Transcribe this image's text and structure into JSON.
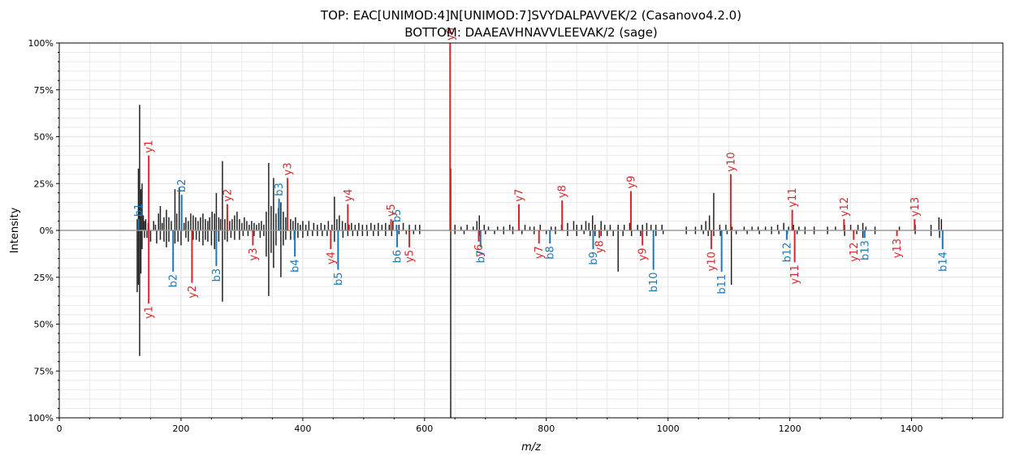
{
  "chart_data": {
    "type": "mirror-spectrum",
    "title_top": "TOP: EAC[UNIMOD:4]N[UNIMOD:7]SVYDALPAVVEK/2    (Casanovo4.2.0)",
    "title_bottom": "BOTTOM: DAAEAVHNAVVLEEVAK/2    (sage)",
    "xlabel": "m/z",
    "ylabel": "Intensity",
    "xlim": [
      0,
      1550
    ],
    "ylim": [
      -100,
      100
    ],
    "xticks": [
      "0",
      "200",
      "400",
      "600",
      "800",
      "1000",
      "1200",
      "1400"
    ],
    "yticks": [
      "100%",
      "75%",
      "50%",
      "25%",
      "0%",
      "25%",
      "50%",
      "75%",
      "100%"
    ],
    "grid": true,
    "colors": {
      "y_ion": "#d62728",
      "b_ion": "#1f77b4",
      "unmatched": "#212121",
      "baseline": "#999999"
    },
    "top_unmatched_peaks": [
      [
        128,
        6
      ],
      [
        130,
        33
      ],
      [
        131,
        14
      ],
      [
        132,
        67
      ],
      [
        134,
        22
      ],
      [
        136,
        25
      ],
      [
        138,
        8
      ],
      [
        140,
        5
      ],
      [
        142,
        6
      ],
      [
        146,
        4
      ],
      [
        155,
        5
      ],
      [
        158,
        3
      ],
      [
        163,
        9
      ],
      [
        166,
        13
      ],
      [
        169,
        4
      ],
      [
        172,
        7
      ],
      [
        176,
        11
      ],
      [
        180,
        7
      ],
      [
        184,
        5
      ],
      [
        190,
        22
      ],
      [
        193,
        9
      ],
      [
        197,
        23
      ],
      [
        201,
        6
      ],
      [
        205,
        4
      ],
      [
        208,
        7
      ],
      [
        212,
        5
      ],
      [
        216,
        9
      ],
      [
        220,
        8
      ],
      [
        224,
        7
      ],
      [
        228,
        5
      ],
      [
        232,
        7
      ],
      [
        236,
        9
      ],
      [
        240,
        6
      ],
      [
        244,
        5
      ],
      [
        247,
        7
      ],
      [
        251,
        10
      ],
      [
        255,
        9
      ],
      [
        258,
        20
      ],
      [
        262,
        7
      ],
      [
        265,
        6
      ],
      [
        268,
        37
      ],
      [
        272,
        6
      ],
      [
        276,
        9
      ],
      [
        280,
        5
      ],
      [
        284,
        6
      ],
      [
        288,
        8
      ],
      [
        292,
        10
      ],
      [
        296,
        6
      ],
      [
        300,
        4
      ],
      [
        304,
        7
      ],
      [
        308,
        5
      ],
      [
        312,
        3
      ],
      [
        316,
        5
      ],
      [
        320,
        4
      ],
      [
        324,
        3
      ],
      [
        328,
        4
      ],
      [
        332,
        5
      ],
      [
        336,
        3
      ],
      [
        340,
        10
      ],
      [
        344,
        36
      ],
      [
        348,
        13
      ],
      [
        352,
        28
      ],
      [
        356,
        9
      ],
      [
        360,
        12
      ],
      [
        364,
        15
      ],
      [
        368,
        10
      ],
      [
        372,
        7
      ],
      [
        380,
        6
      ],
      [
        384,
        5
      ],
      [
        388,
        7
      ],
      [
        392,
        4
      ],
      [
        396,
        3
      ],
      [
        400,
        5
      ],
      [
        405,
        3
      ],
      [
        410,
        5
      ],
      [
        418,
        4
      ],
      [
        424,
        3
      ],
      [
        430,
        4
      ],
      [
        436,
        3
      ],
      [
        442,
        5
      ],
      [
        448,
        3
      ],
      [
        452,
        18
      ],
      [
        456,
        6
      ],
      [
        460,
        8
      ],
      [
        465,
        5
      ],
      [
        470,
        4
      ],
      [
        476,
        3
      ],
      [
        480,
        4
      ],
      [
        486,
        3
      ],
      [
        492,
        4
      ],
      [
        498,
        3
      ],
      [
        505,
        3
      ],
      [
        512,
        4
      ],
      [
        518,
        3
      ],
      [
        524,
        4
      ],
      [
        530,
        3
      ],
      [
        536,
        4
      ],
      [
        542,
        3
      ],
      [
        548,
        5
      ],
      [
        558,
        3
      ],
      [
        565,
        4
      ],
      [
        575,
        3
      ],
      [
        585,
        3
      ],
      [
        592,
        3
      ],
      [
        643,
        33
      ],
      [
        650,
        3
      ],
      [
        660,
        2
      ],
      [
        670,
        3
      ],
      [
        680,
        2
      ],
      [
        686,
        5
      ],
      [
        690,
        8
      ],
      [
        698,
        3
      ],
      [
        705,
        2
      ],
      [
        720,
        2
      ],
      [
        730,
        2
      ],
      [
        740,
        3
      ],
      [
        745,
        2
      ],
      [
        765,
        3
      ],
      [
        773,
        2
      ],
      [
        780,
        2
      ],
      [
        790,
        3
      ],
      [
        808,
        2
      ],
      [
        815,
        2
      ],
      [
        825,
        3
      ],
      [
        835,
        4
      ],
      [
        845,
        5
      ],
      [
        850,
        3
      ],
      [
        858,
        3
      ],
      [
        865,
        5
      ],
      [
        870,
        4
      ],
      [
        876,
        8
      ],
      [
        880,
        3
      ],
      [
        890,
        5
      ],
      [
        896,
        3
      ],
      [
        905,
        3
      ],
      [
        918,
        3
      ],
      [
        928,
        3
      ],
      [
        937,
        4
      ],
      [
        950,
        3
      ],
      [
        958,
        3
      ],
      [
        965,
        4
      ],
      [
        972,
        3
      ],
      [
        980,
        3
      ],
      [
        990,
        3
      ],
      [
        1030,
        2
      ],
      [
        1045,
        2
      ],
      [
        1055,
        3
      ],
      [
        1062,
        5
      ],
      [
        1068,
        8
      ],
      [
        1075,
        20
      ],
      [
        1085,
        3
      ],
      [
        1095,
        3
      ],
      [
        1105,
        2
      ],
      [
        1125,
        2
      ],
      [
        1138,
        2
      ],
      [
        1148,
        2
      ],
      [
        1160,
        2
      ],
      [
        1170,
        2
      ],
      [
        1180,
        3
      ],
      [
        1190,
        4
      ],
      [
        1198,
        2
      ],
      [
        1206,
        3
      ],
      [
        1215,
        2
      ],
      [
        1225,
        2
      ],
      [
        1240,
        2
      ],
      [
        1262,
        2
      ],
      [
        1275,
        2
      ],
      [
        1290,
        3
      ],
      [
        1300,
        3
      ],
      [
        1312,
        3
      ],
      [
        1320,
        4
      ],
      [
        1325,
        2
      ],
      [
        1340,
        2
      ],
      [
        1380,
        2
      ],
      [
        1406,
        3
      ],
      [
        1432,
        3
      ],
      [
        1445,
        7
      ],
      [
        1449,
        6
      ]
    ],
    "bottom_unmatched_peaks": [
      [
        128,
        33
      ],
      [
        130,
        29
      ],
      [
        132,
        67
      ],
      [
        134,
        23
      ],
      [
        136,
        10
      ],
      [
        140,
        4
      ],
      [
        144,
        4
      ],
      [
        150,
        6
      ],
      [
        160,
        7
      ],
      [
        166,
        5
      ],
      [
        172,
        6
      ],
      [
        176,
        9
      ],
      [
        180,
        6
      ],
      [
        190,
        7
      ],
      [
        195,
        6
      ],
      [
        200,
        8
      ],
      [
        208,
        4
      ],
      [
        212,
        6
      ],
      [
        220,
        5
      ],
      [
        225,
        5
      ],
      [
        230,
        6
      ],
      [
        236,
        8
      ],
      [
        240,
        5
      ],
      [
        244,
        6
      ],
      [
        250,
        8
      ],
      [
        255,
        10
      ],
      [
        262,
        6
      ],
      [
        268,
        38
      ],
      [
        272,
        5
      ],
      [
        276,
        6
      ],
      [
        282,
        4
      ],
      [
        288,
        5
      ],
      [
        296,
        5
      ],
      [
        302,
        3
      ],
      [
        310,
        3
      ],
      [
        320,
        3
      ],
      [
        330,
        4
      ],
      [
        336,
        3
      ],
      [
        340,
        14
      ],
      [
        344,
        35
      ],
      [
        348,
        12
      ],
      [
        352,
        20
      ],
      [
        356,
        8
      ],
      [
        364,
        25
      ],
      [
        368,
        8
      ],
      [
        372,
        5
      ],
      [
        380,
        5
      ],
      [
        386,
        5
      ],
      [
        392,
        4
      ],
      [
        400,
        4
      ],
      [
        408,
        3
      ],
      [
        416,
        3
      ],
      [
        424,
        3
      ],
      [
        432,
        3
      ],
      [
        440,
        3
      ],
      [
        452,
        6
      ],
      [
        458,
        4
      ],
      [
        466,
        4
      ],
      [
        474,
        3
      ],
      [
        482,
        3
      ],
      [
        490,
        3
      ],
      [
        498,
        3
      ],
      [
        506,
        3
      ],
      [
        516,
        3
      ],
      [
        524,
        3
      ],
      [
        536,
        3
      ],
      [
        546,
        3
      ],
      [
        558,
        2
      ],
      [
        570,
        2
      ],
      [
        582,
        2
      ],
      [
        592,
        2
      ],
      [
        643,
        100
      ],
      [
        650,
        2
      ],
      [
        665,
        2
      ],
      [
        690,
        3
      ],
      [
        700,
        2
      ],
      [
        715,
        2
      ],
      [
        730,
        2
      ],
      [
        745,
        2
      ],
      [
        760,
        2
      ],
      [
        780,
        2
      ],
      [
        800,
        2
      ],
      [
        815,
        2
      ],
      [
        835,
        3
      ],
      [
        850,
        3
      ],
      [
        862,
        2
      ],
      [
        872,
        3
      ],
      [
        880,
        3
      ],
      [
        890,
        3
      ],
      [
        900,
        3
      ],
      [
        910,
        3
      ],
      [
        918,
        22
      ],
      [
        926,
        3
      ],
      [
        940,
        3
      ],
      [
        955,
        3
      ],
      [
        965,
        3
      ],
      [
        980,
        3
      ],
      [
        992,
        2
      ],
      [
        1030,
        2
      ],
      [
        1045,
        2
      ],
      [
        1058,
        2
      ],
      [
        1066,
        3
      ],
      [
        1075,
        3
      ],
      [
        1086,
        3
      ],
      [
        1097,
        2
      ],
      [
        1104,
        29
      ],
      [
        1112,
        2
      ],
      [
        1130,
        2
      ],
      [
        1150,
        2
      ],
      [
        1170,
        2
      ],
      [
        1182,
        2
      ],
      [
        1196,
        2
      ],
      [
        1212,
        2
      ],
      [
        1225,
        2
      ],
      [
        1240,
        2
      ],
      [
        1262,
        2
      ],
      [
        1290,
        3
      ],
      [
        1310,
        2
      ],
      [
        1320,
        4
      ],
      [
        1340,
        2
      ],
      [
        1406,
        2
      ],
      [
        1432,
        3
      ],
      [
        1446,
        4
      ]
    ],
    "top_matched": [
      {
        "label": "b1",
        "mz": 130,
        "intensity": 6,
        "type": "b"
      },
      {
        "label": "y1",
        "mz": 147,
        "intensity": 40,
        "type": "y"
      },
      {
        "label": "b2",
        "mz": 201,
        "intensity": 19,
        "type": "b"
      },
      {
        "label": "y2",
        "mz": 276,
        "intensity": 14,
        "type": "y"
      },
      {
        "label": "b3",
        "mz": 361,
        "intensity": 17,
        "type": "b"
      },
      {
        "label": "y3",
        "mz": 375,
        "intensity": 28,
        "type": "y"
      },
      {
        "label": "y4",
        "mz": 474,
        "intensity": 14,
        "type": "y"
      },
      {
        "label": "y5",
        "mz": 545,
        "intensity": 6,
        "type": "y"
      },
      {
        "label": "b5",
        "mz": 554,
        "intensity": 3,
        "type": "b"
      },
      {
        "label": "y6",
        "mz": 642,
        "intensity": 100,
        "type": "y"
      },
      {
        "label": "y7",
        "mz": 755,
        "intensity": 14,
        "type": "y"
      },
      {
        "label": "y8",
        "mz": 826,
        "intensity": 16,
        "type": "y"
      },
      {
        "label": "y9",
        "mz": 939,
        "intensity": 21,
        "type": "y"
      },
      {
        "label": "y10",
        "mz": 1103,
        "intensity": 30,
        "type": "y"
      },
      {
        "label": "y11",
        "mz": 1204,
        "intensity": 11,
        "type": "y"
      },
      {
        "label": "y12",
        "mz": 1289,
        "intensity": 6,
        "type": "y"
      },
      {
        "label": "y13",
        "mz": 1405,
        "intensity": 6,
        "type": "y"
      }
    ],
    "bottom_matched": [
      {
        "label": "y1",
        "mz": 147,
        "intensity": 39,
        "type": "y"
      },
      {
        "label": "b2",
        "mz": 187,
        "intensity": 22,
        "type": "b"
      },
      {
        "label": "y2",
        "mz": 218,
        "intensity": 28,
        "type": "y"
      },
      {
        "label": "b3",
        "mz": 258,
        "intensity": 19,
        "type": "b"
      },
      {
        "label": "y3",
        "mz": 318,
        "intensity": 8,
        "type": "y"
      },
      {
        "label": "b4",
        "mz": 387,
        "intensity": 14,
        "type": "b"
      },
      {
        "label": "y4",
        "mz": 446,
        "intensity": 10,
        "type": "y"
      },
      {
        "label": "b5",
        "mz": 458,
        "intensity": 21,
        "type": "b"
      },
      {
        "label": "b6",
        "mz": 555,
        "intensity": 9,
        "type": "b"
      },
      {
        "label": "y5",
        "mz": 575,
        "intensity": 9,
        "type": "y"
      },
      {
        "label": "y6",
        "mz": 689,
        "intensity": 6,
        "type": "y"
      },
      {
        "label": "b7",
        "mz": 692,
        "intensity": 9,
        "type": "b"
      },
      {
        "label": "y7",
        "mz": 788,
        "intensity": 7,
        "type": "y"
      },
      {
        "label": "b8",
        "mz": 806,
        "intensity": 7,
        "type": "b"
      },
      {
        "label": "b9",
        "mz": 877,
        "intensity": 10,
        "type": "b"
      },
      {
        "label": "y8",
        "mz": 887,
        "intensity": 4,
        "type": "y"
      },
      {
        "label": "y9",
        "mz": 958,
        "intensity": 8,
        "type": "y"
      },
      {
        "label": "b10",
        "mz": 976,
        "intensity": 21,
        "type": "b"
      },
      {
        "label": "y10",
        "mz": 1071,
        "intensity": 10,
        "type": "y"
      },
      {
        "label": "b11",
        "mz": 1088,
        "intensity": 22,
        "type": "b"
      },
      {
        "label": "b12",
        "mz": 1195,
        "intensity": 5,
        "type": "b"
      },
      {
        "label": "y11",
        "mz": 1208,
        "intensity": 17,
        "type": "y"
      },
      {
        "label": "y12",
        "mz": 1305,
        "intensity": 5,
        "type": "y"
      },
      {
        "label": "b13",
        "mz": 1323,
        "intensity": 4,
        "type": "b"
      },
      {
        "label": "y13",
        "mz": 1376,
        "intensity": 3,
        "type": "y"
      },
      {
        "label": "b14",
        "mz": 1451,
        "intensity": 10,
        "type": "b"
      }
    ]
  }
}
